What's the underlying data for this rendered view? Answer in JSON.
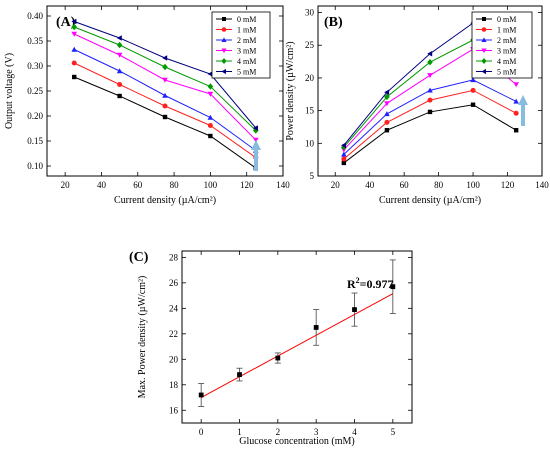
{
  "chart_data": [
    {
      "id": "A",
      "type": "line",
      "panel_label": "(A)",
      "xlabel": "Current density (µA/cm²)",
      "ylabel": "Output voltage (V)",
      "xlim": [
        10,
        140
      ],
      "ylim": [
        0.08,
        0.42
      ],
      "xticks": [
        20,
        40,
        60,
        80,
        100,
        120,
        140
      ],
      "yticks": [
        0.1,
        0.15,
        0.2,
        0.25,
        0.3,
        0.35,
        0.4
      ],
      "ytick_labels": [
        "0.10",
        "0.15",
        "0.20",
        "0.25",
        "0.30",
        "0.35",
        "0.40"
      ],
      "x": [
        25,
        50,
        75,
        100,
        125
      ],
      "legend_position": "top-right",
      "series": [
        {
          "name": "0 mM",
          "color": "#000000",
          "marker": "square",
          "values": [
            0.278,
            0.24,
            0.198,
            0.16,
            0.096
          ]
        },
        {
          "name": "1 mM",
          "color": "#ff2020",
          "marker": "circle",
          "values": [
            0.306,
            0.263,
            0.22,
            0.181,
            0.117
          ]
        },
        {
          "name": "2 mM",
          "color": "#2020ff",
          "marker": "triangle-up",
          "values": [
            0.333,
            0.29,
            0.241,
            0.197,
            0.131
          ]
        },
        {
          "name": "3 mM",
          "color": "#ff00ff",
          "marker": "triangle-down",
          "values": [
            0.364,
            0.322,
            0.272,
            0.244,
            0.152
          ]
        },
        {
          "name": "4 mM",
          "color": "#009900",
          "marker": "diamond",
          "values": [
            0.378,
            0.342,
            0.298,
            0.259,
            0.171
          ]
        },
        {
          "name": "5 mM",
          "color": "#000080",
          "marker": "triangle-left",
          "values": [
            0.389,
            0.356,
            0.316,
            0.284,
            0.176
          ]
        }
      ],
      "arrow_color": "#88bbe0"
    },
    {
      "id": "B",
      "type": "line",
      "panel_label": "(B)",
      "xlabel": "Current density (µA/cm²)",
      "ylabel": "Power density (µW/cm²)",
      "xlim": [
        10,
        140
      ],
      "ylim": [
        5,
        31
      ],
      "xticks": [
        20,
        40,
        60,
        80,
        100,
        120,
        140
      ],
      "yticks": [
        5,
        10,
        15,
        20,
        25,
        30
      ],
      "ytick_labels": [
        "5",
        "10",
        "15",
        "20",
        "25",
        "30"
      ],
      "x": [
        25,
        50,
        75,
        100,
        125
      ],
      "legend_position": "top-right",
      "series": [
        {
          "name": "0 mM",
          "color": "#000000",
          "marker": "square",
          "values": [
            7.0,
            12.0,
            14.8,
            15.9,
            12.0
          ]
        },
        {
          "name": "1 mM",
          "color": "#ff2020",
          "marker": "circle",
          "values": [
            7.6,
            13.2,
            16.6,
            18.1,
            14.6
          ]
        },
        {
          "name": "2 mM",
          "color": "#2020ff",
          "marker": "triangle-up",
          "values": [
            8.3,
            14.5,
            18.1,
            19.7,
            16.4
          ]
        },
        {
          "name": "3 mM",
          "color": "#ff00ff",
          "marker": "triangle-down",
          "values": [
            9.0,
            16.1,
            20.4,
            24.4,
            19.0
          ]
        },
        {
          "name": "4 mM",
          "color": "#009900",
          "marker": "diamond",
          "values": [
            9.4,
            17.1,
            22.4,
            25.8,
            21.4
          ]
        },
        {
          "name": "5 mM",
          "color": "#000080",
          "marker": "triangle-left",
          "values": [
            9.7,
            17.8,
            23.7,
            28.4,
            22.0
          ]
        }
      ],
      "arrow_color": "#88bbe0"
    },
    {
      "id": "C",
      "type": "scatter",
      "panel_label": "(C)",
      "xlabel": "Glucose concentration (mM)",
      "ylabel": "Max. Power density (µW/cm²)",
      "xlim": [
        -0.5,
        5.5
      ],
      "ylim": [
        15,
        28.5
      ],
      "xticks": [
        0,
        1,
        2,
        3,
        4,
        5
      ],
      "yticks": [
        16,
        18,
        20,
        22,
        24,
        26,
        28
      ],
      "ytick_labels": [
        "16",
        "18",
        "20",
        "22",
        "24",
        "26",
        "28"
      ],
      "series": [
        {
          "x": [
            0,
            1,
            2,
            3,
            4,
            5
          ],
          "values": [
            17.2,
            18.8,
            20.1,
            22.5,
            23.9,
            25.7
          ],
          "errors": [
            0.9,
            0.5,
            0.4,
            1.4,
            1.3,
            2.1
          ],
          "color": "#000000",
          "marker": "square"
        }
      ],
      "fit": {
        "slope": 1.63,
        "intercept": 17.0,
        "color": "#ff0000"
      },
      "annotation": {
        "prefix": "R",
        "sup": "2",
        "suffix": "=0.977"
      }
    }
  ]
}
